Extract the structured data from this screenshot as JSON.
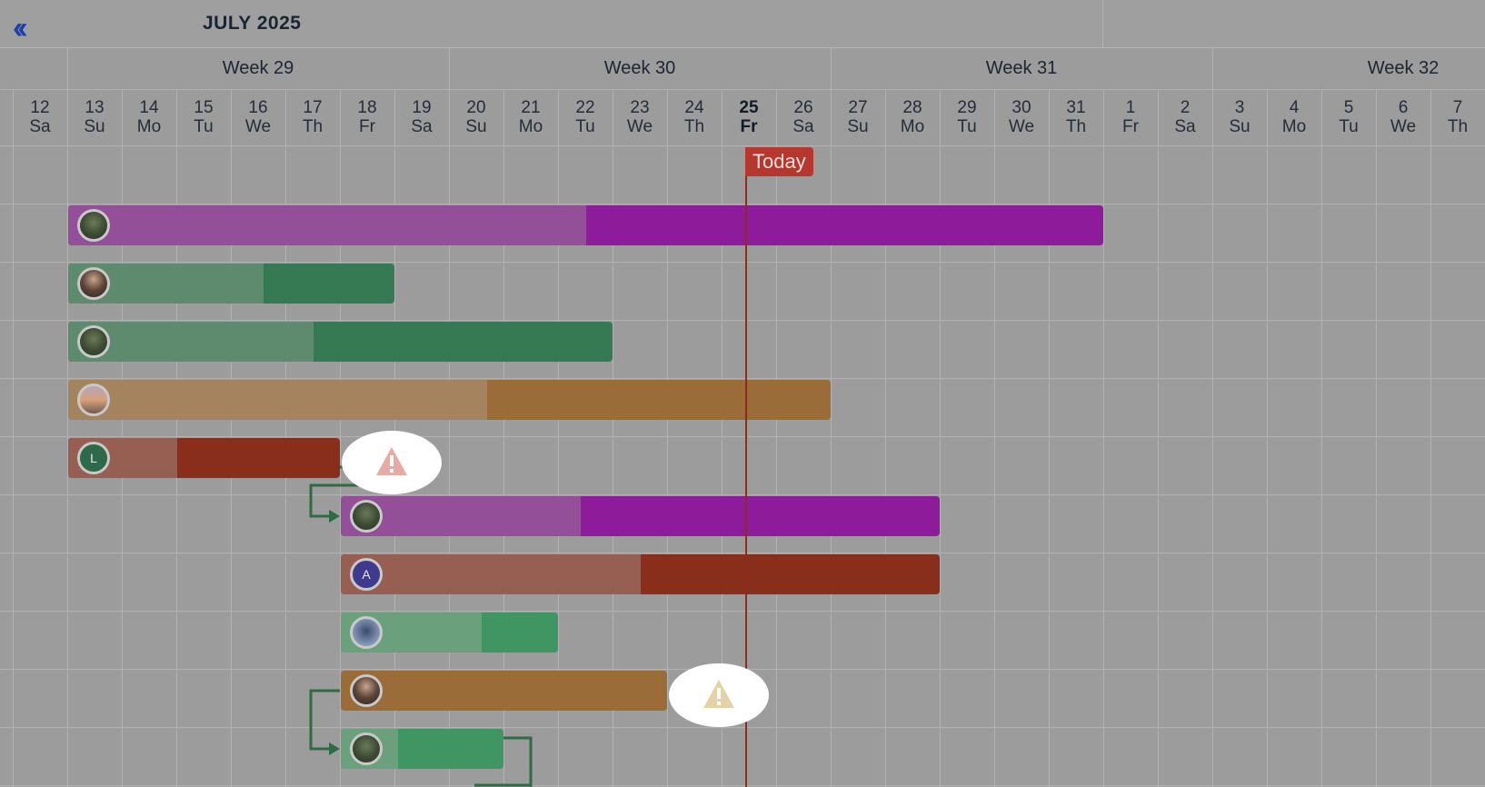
{
  "header": {
    "month": "JULY 2025",
    "back_icon": "double-chevron-left-icon"
  },
  "weeks": [
    "Week 29",
    "Week 30",
    "Week 31",
    "Week 32"
  ],
  "days": [
    {
      "num": "12",
      "dow": "Sa"
    },
    {
      "num": "13",
      "dow": "Su"
    },
    {
      "num": "14",
      "dow": "Mo"
    },
    {
      "num": "15",
      "dow": "Tu"
    },
    {
      "num": "16",
      "dow": "We"
    },
    {
      "num": "17",
      "dow": "Th"
    },
    {
      "num": "18",
      "dow": "Fr"
    },
    {
      "num": "19",
      "dow": "Sa"
    },
    {
      "num": "20",
      "dow": "Su"
    },
    {
      "num": "21",
      "dow": "Mo"
    },
    {
      "num": "22",
      "dow": "Tu"
    },
    {
      "num": "23",
      "dow": "We"
    },
    {
      "num": "24",
      "dow": "Th"
    },
    {
      "num": "25",
      "dow": "Fr"
    },
    {
      "num": "26",
      "dow": "Sa"
    },
    {
      "num": "27",
      "dow": "Su"
    },
    {
      "num": "28",
      "dow": "Mo"
    },
    {
      "num": "29",
      "dow": "Tu"
    },
    {
      "num": "30",
      "dow": "We"
    },
    {
      "num": "31",
      "dow": "Th"
    },
    {
      "num": "1",
      "dow": "Fr"
    },
    {
      "num": "2",
      "dow": "Sa"
    },
    {
      "num": "3",
      "dow": "Su"
    },
    {
      "num": "4",
      "dow": "Mo"
    },
    {
      "num": "5",
      "dow": "Tu"
    },
    {
      "num": "6",
      "dow": "We"
    },
    {
      "num": "7",
      "dow": "Th"
    }
  ],
  "today": {
    "label": "Today",
    "day_index": 13
  },
  "colors": {
    "purple": "#8e1b9a",
    "purple_done": "#934f98",
    "green": "#357a52",
    "green_done": "#5e8a6e",
    "green_light": "#3f9663",
    "green_light_done": "#6aa07c",
    "orange": "#9a6c38",
    "orange_done": "#a4845e",
    "red": "#8a2e1c",
    "red_done": "#975f52",
    "connector": "#2f6a45"
  },
  "tasks": [
    {
      "start": 1,
      "end": 20,
      "progress": 0.5,
      "color": "purple",
      "avatar": "photo-forest",
      "initial": ""
    },
    {
      "start": 1,
      "end": 7,
      "progress": 0.6,
      "color": "green",
      "avatar": "photo-woman-dark",
      "initial": ""
    },
    {
      "start": 1,
      "end": 11,
      "progress": 0.45,
      "color": "green",
      "avatar": "photo-forest",
      "initial": ""
    },
    {
      "start": 1,
      "end": 15,
      "progress": 0.55,
      "color": "orange",
      "avatar": "photo-sunset",
      "initial": ""
    },
    {
      "start": 1,
      "end": 6,
      "progress": 0.4,
      "color": "red",
      "avatar": "initial",
      "initial": "L",
      "avatar_bg": "#2d6a4a"
    },
    {
      "start": 6,
      "end": 17,
      "progress": 0.4,
      "color": "purple",
      "avatar": "photo-forest",
      "initial": ""
    },
    {
      "start": 6,
      "end": 17,
      "progress": 0.5,
      "color": "red",
      "avatar": "initial",
      "initial": "A",
      "avatar_bg": "#3f3a8e"
    },
    {
      "start": 6,
      "end": 10,
      "progress": 0.65,
      "color": "green_light",
      "avatar": "photo-blue",
      "initial": ""
    },
    {
      "start": 6,
      "end": 12,
      "progress": 0.0,
      "color": "orange",
      "avatar": "photo-woman-dark",
      "initial": ""
    },
    {
      "start": 6,
      "end": 9,
      "progress": 0.35,
      "color": "green_light",
      "avatar": "photo-forest",
      "initial": ""
    }
  ],
  "warnings": [
    {
      "row": 4,
      "icon": "warning-triangle-icon",
      "color": "#e8aaa4"
    },
    {
      "row": 8,
      "icon": "warning-triangle-icon",
      "color": "#e3d2a6"
    }
  ]
}
